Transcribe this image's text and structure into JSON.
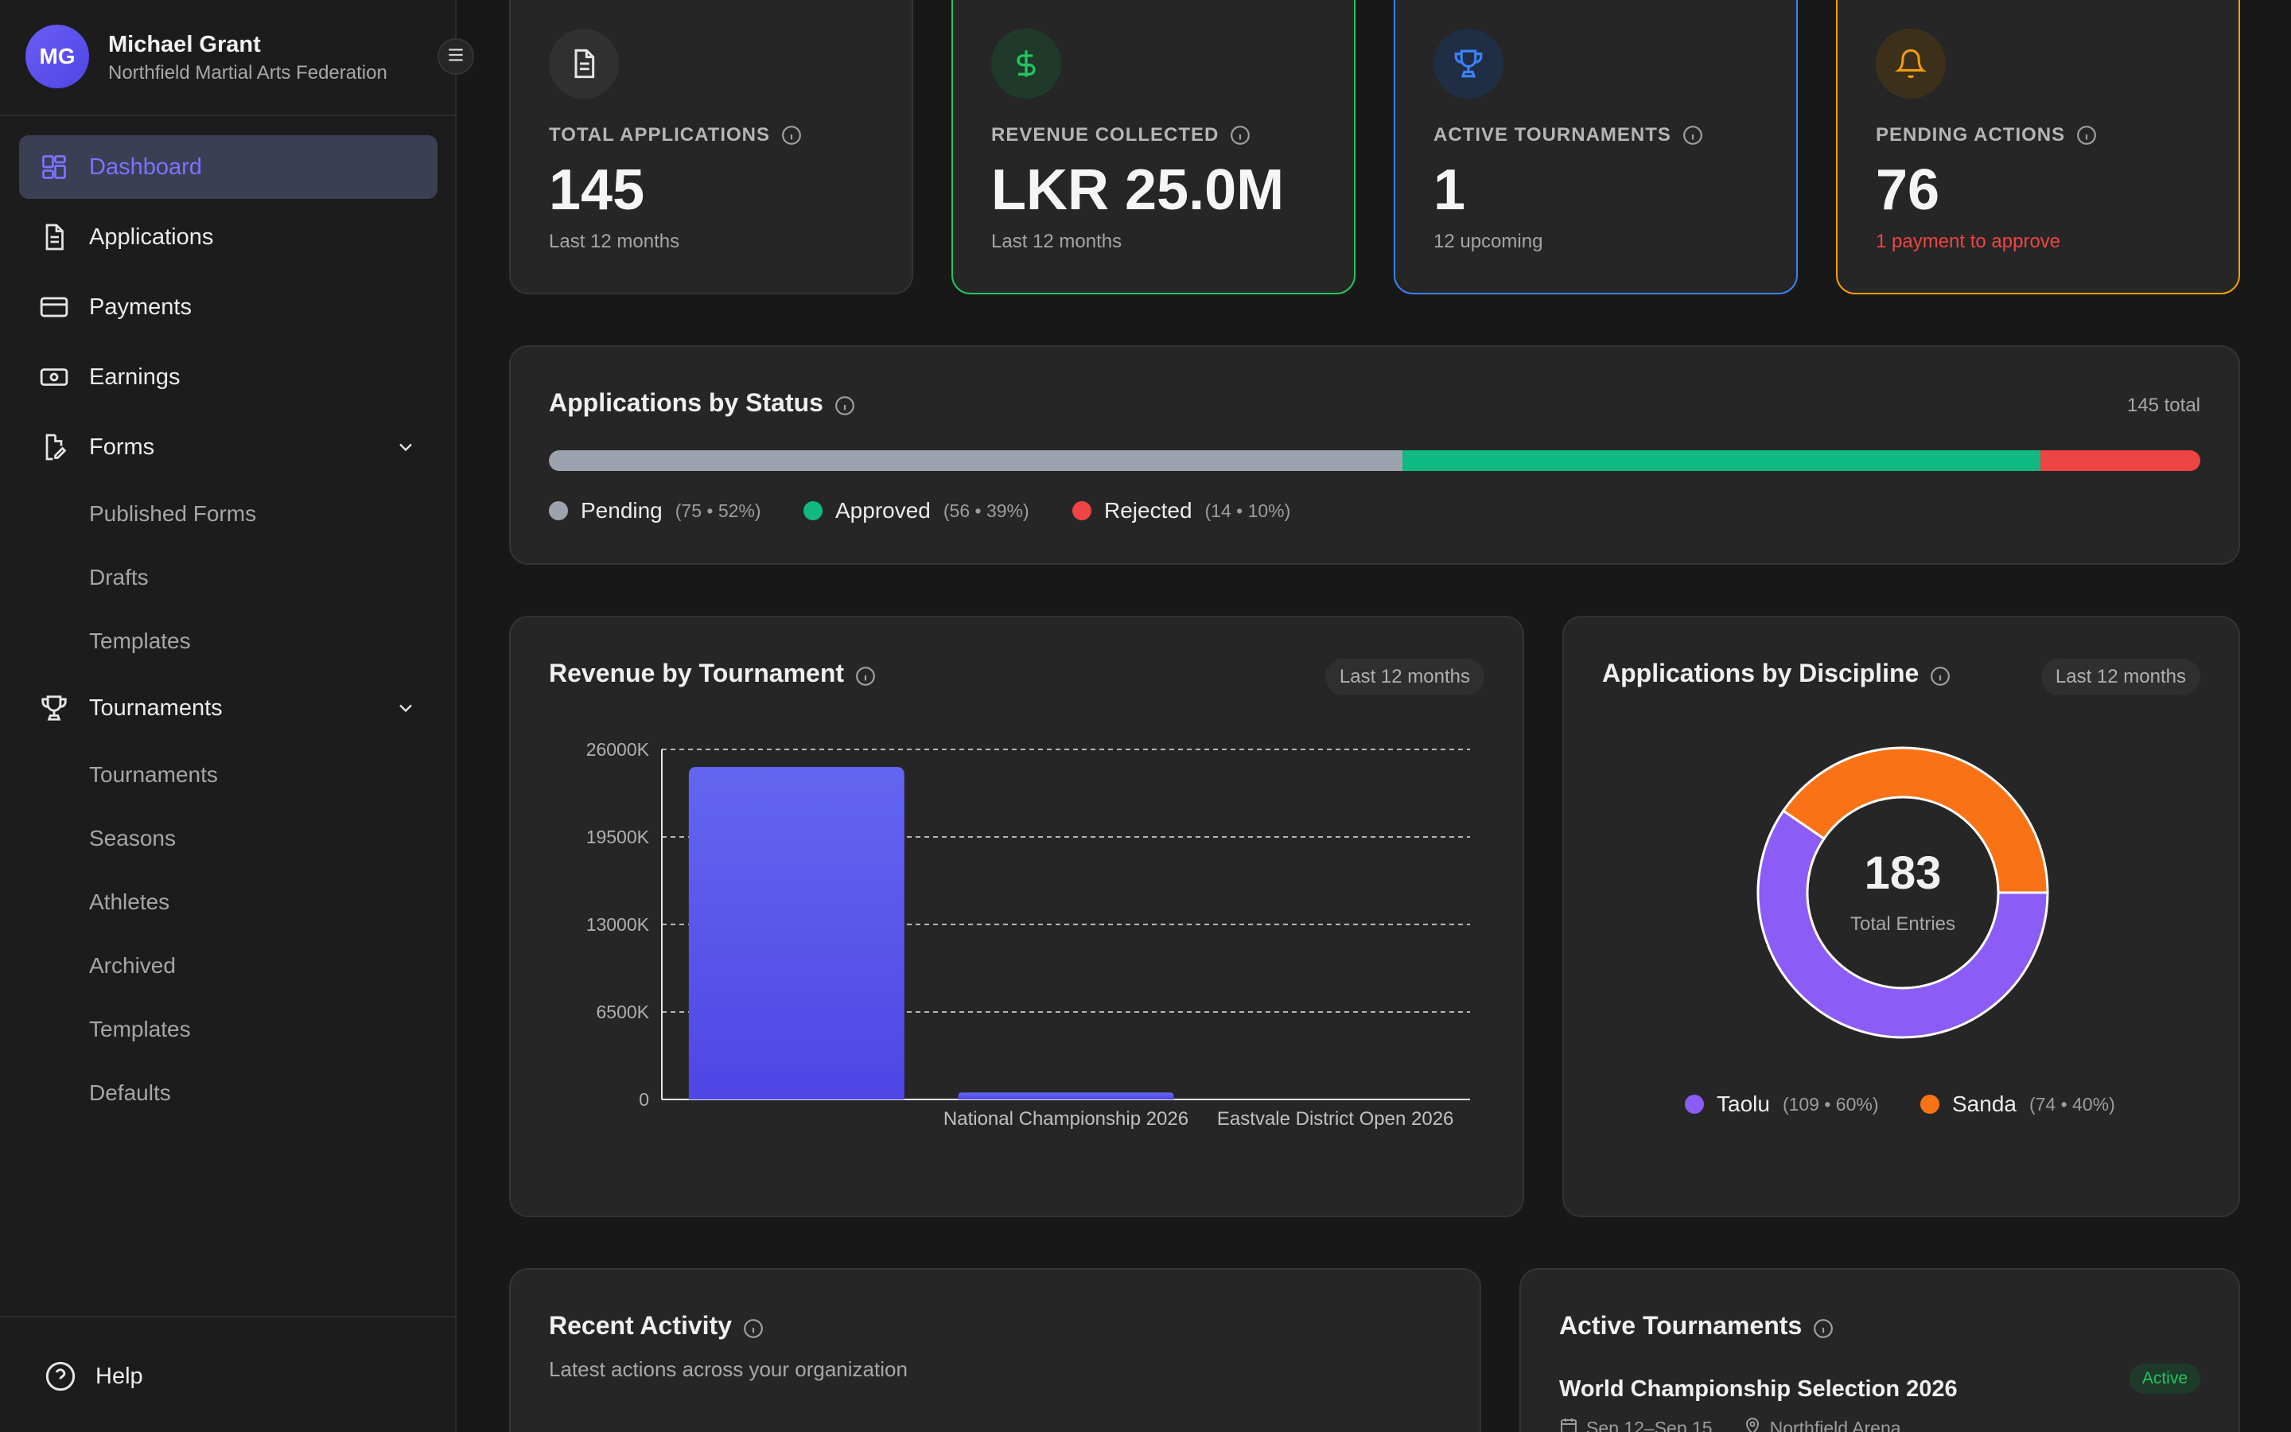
{
  "user": {
    "initials": "MG",
    "name": "Michael Grant",
    "org": "Northfield Martial Arts Federation"
  },
  "nav": {
    "dashboard": "Dashboard",
    "applications": "Applications",
    "payments": "Payments",
    "earnings": "Earnings",
    "forms": "Forms",
    "forms_sub": [
      "Published Forms",
      "Drafts",
      "Templates"
    ],
    "tournaments": "Tournaments",
    "tournaments_sub": [
      "Tournaments",
      "Seasons",
      "Athletes",
      "Archived",
      "Templates",
      "Defaults"
    ],
    "help": "Help"
  },
  "stats": [
    {
      "label": "TOTAL APPLICATIONS",
      "value": "145",
      "sub": "Last 12 months",
      "icon": "document-icon"
    },
    {
      "label": "REVENUE COLLECTED",
      "value": "LKR 25.0M",
      "sub": "Last 12 months",
      "icon": "dollar-icon"
    },
    {
      "label": "ACTIVE TOURNAMENTS",
      "value": "1",
      "sub": "12 upcoming",
      "icon": "trophy-icon"
    },
    {
      "label": "PENDING ACTIONS",
      "value": "76",
      "sub": "1 payment to approve",
      "icon": "bell-icon"
    }
  ],
  "status_card": {
    "title": "Applications by Status",
    "total": "145 total",
    "segments": [
      {
        "name": "Pending",
        "detail": "(75 • 52%)",
        "fraction": 0.517,
        "color": "#9ca3af"
      },
      {
        "name": "Approved",
        "detail": "(56 • 39%)",
        "fraction": 0.386,
        "color": "#10b981"
      },
      {
        "name": "Rejected",
        "detail": "(14 • 10%)",
        "fraction": 0.097,
        "color": "#ef4444"
      }
    ]
  },
  "revenue_card": {
    "title": "Revenue by Tournament",
    "range": "Last 12 months"
  },
  "discipline_card": {
    "title": "Applications by Discipline",
    "range": "Last 12 months",
    "center_value": "183",
    "center_label": "Total Entries",
    "items": [
      {
        "name": "Taolu",
        "detail": "(109 • 60%)"
      },
      {
        "name": "Sanda",
        "detail": "(74 • 40%)"
      }
    ]
  },
  "activity_card": {
    "title": "Recent Activity",
    "subtitle": "Latest actions across your organization"
  },
  "active_tournaments_card": {
    "title": "Active Tournaments",
    "item_name": "World Championship Selection 2026",
    "item_status": "Active",
    "item_dates": "Sep 12–Sep 15",
    "item_venue": "Northfield Arena"
  },
  "chart_data": [
    {
      "type": "bar",
      "categories": [
        "",
        "National Championship 2026",
        "Eastvale District Open 2026"
      ],
      "values": [
        24700,
        520,
        0
      ],
      "yticks": [
        0,
        6500,
        13000,
        19500,
        26000
      ],
      "ytick_labels": [
        "0",
        "6500K",
        "13000K",
        "19500K",
        "26000K"
      ],
      "ylim": [
        0,
        26000
      ],
      "grid": true,
      "color": "#5b55ec"
    },
    {
      "type": "pie",
      "categories": [
        "Taolu",
        "Sanda"
      ],
      "values": [
        109,
        74
      ],
      "colors": [
        "#8b5cf6",
        "#f97316"
      ]
    }
  ],
  "colors": {
    "accent": "#7c72ff",
    "green": "#22c55e",
    "blue": "#3b82f6",
    "orange": "#f59e0b",
    "red": "#ef4444"
  }
}
